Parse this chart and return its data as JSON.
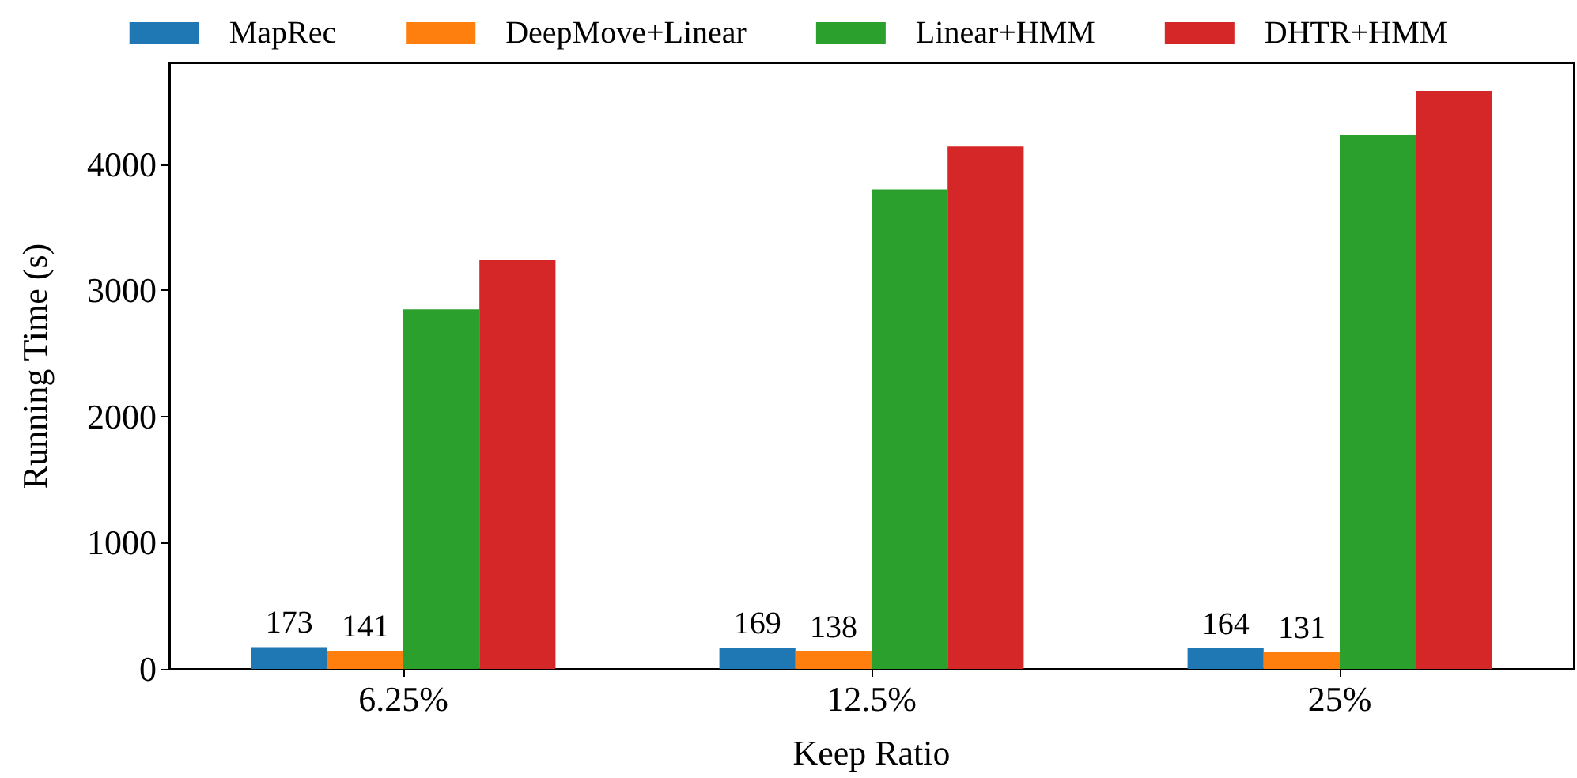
{
  "chart_data": {
    "type": "bar",
    "xlabel": "Keep Ratio",
    "ylabel": "Running Time (s)",
    "categories": [
      "6.25%",
      "12.5%",
      "25%"
    ],
    "series": [
      {
        "name": "MapRec",
        "color": "#1f77b4",
        "values": [
          173,
          169,
          164
        ],
        "value_labels": [
          "173",
          "169",
          "164"
        ]
      },
      {
        "name": "DeepMove+Linear",
        "color": "#ff7f0e",
        "values": [
          141,
          138,
          131
        ],
        "value_labels": [
          "141",
          "138",
          "131"
        ]
      },
      {
        "name": "Linear+HMM",
        "color": "#2ca02c",
        "values": [
          2850,
          3800,
          4230
        ]
      },
      {
        "name": "DHTR+HMM",
        "color": "#d62728",
        "values": [
          3240,
          4140,
          4580
        ]
      }
    ],
    "ylim": [
      0,
      4800
    ],
    "yticks": [
      0,
      1000,
      2000,
      3000,
      4000
    ],
    "grid": false,
    "legend": "top"
  }
}
